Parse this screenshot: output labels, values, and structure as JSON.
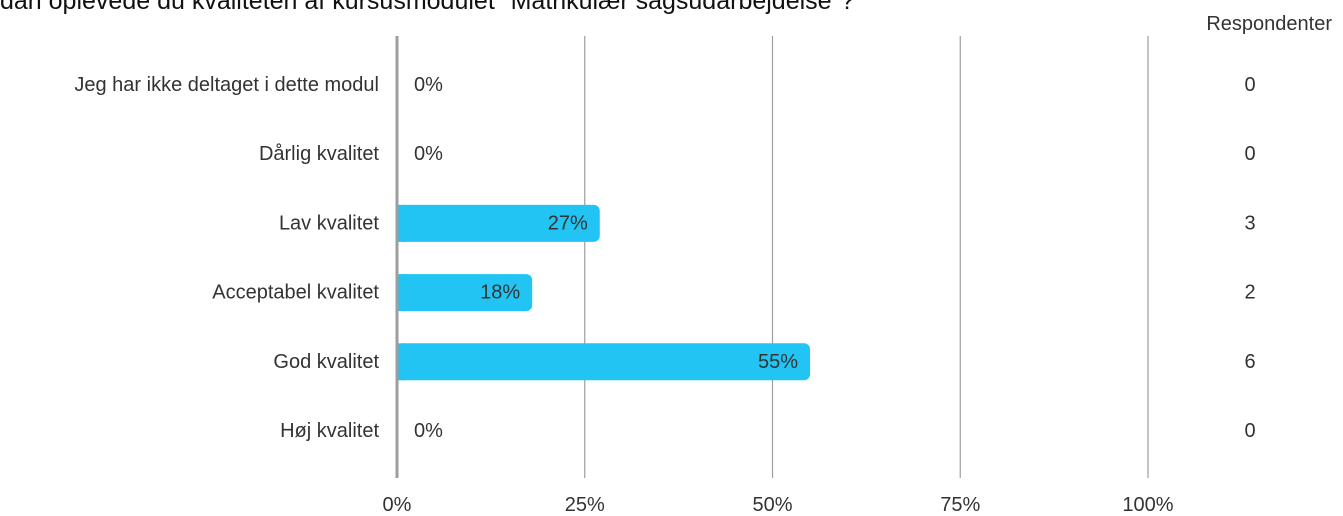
{
  "chart_data": {
    "type": "bar",
    "orientation": "horizontal",
    "title": "dan oplevede du kvaliteten af kursusmodulet \"Matrikulær sagsudarbejdelse\"?",
    "categories": [
      "Jeg har ikke deltaget i dette modul",
      "Dårlig kvalitet",
      "Lav kvalitet",
      "Acceptabel kvalitet",
      "God kvalitet",
      "Høj kvalitet"
    ],
    "values": [
      0,
      0,
      27,
      18,
      55,
      0
    ],
    "value_labels": [
      "0%",
      "0%",
      "27%",
      "18%",
      "55%",
      "0%"
    ],
    "respondents_header": "Respondenter",
    "respondents": [
      "0",
      "0",
      "3",
      "2",
      "6",
      "0"
    ],
    "x_ticks": [
      0,
      25,
      50,
      75,
      100
    ],
    "x_tick_labels": [
      "0%",
      "25%",
      "50%",
      "75%",
      "100%"
    ],
    "xlim": [
      0,
      100
    ],
    "grid": true,
    "bar_color": "#21c4f3",
    "grid_color": "#9e9e9e"
  }
}
